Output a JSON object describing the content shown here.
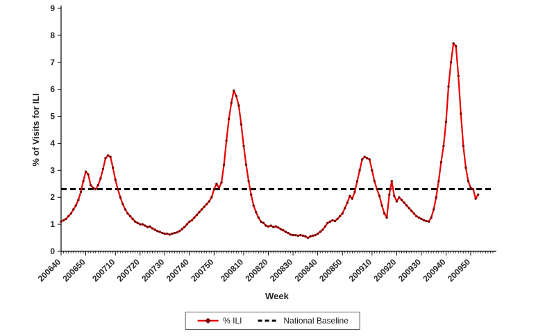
{
  "chart_data": {
    "type": "line",
    "title": "",
    "xlabel": "Week",
    "ylabel": "% of Visits for ILI",
    "ylim": [
      0,
      9
    ],
    "y_ticks": [
      0,
      1,
      2,
      3,
      4,
      5,
      6,
      7,
      8,
      9
    ],
    "grid": false,
    "legend_position": "bottom-center",
    "x_tick_labels": [
      "200640",
      "200650",
      "200710",
      "200720",
      "200730",
      "200740",
      "200750",
      "200810",
      "200820",
      "200830",
      "200840",
      "200850",
      "200910",
      "200920",
      "200930",
      "200940",
      "200950"
    ],
    "week_ranges": [
      [
        2006,
        40,
        52
      ],
      [
        2007,
        1,
        52
      ],
      [
        2008,
        1,
        52
      ],
      [
        2009,
        1,
        53
      ]
    ],
    "baseline": {
      "name": "National Baseline",
      "value": 2.3,
      "color": "#000000",
      "style": "dashed"
    },
    "series": [
      {
        "name": "% ILI",
        "color": "#e60000",
        "marker_color": "#7a0000",
        "values": [
          1.1,
          1.15,
          1.2,
          1.3,
          1.4,
          1.55,
          1.7,
          1.9,
          2.2,
          2.6,
          2.95,
          2.85,
          2.45,
          2.35,
          2.3,
          2.45,
          2.7,
          3.05,
          3.45,
          3.55,
          3.5,
          3.1,
          2.65,
          2.3,
          2.0,
          1.75,
          1.55,
          1.4,
          1.3,
          1.2,
          1.1,
          1.05,
          1.0,
          1.0,
          0.95,
          0.9,
          0.92,
          0.85,
          0.8,
          0.75,
          0.72,
          0.68,
          0.65,
          0.65,
          0.62,
          0.65,
          0.68,
          0.7,
          0.75,
          0.82,
          0.9,
          1.0,
          1.1,
          1.15,
          1.25,
          1.35,
          1.45,
          1.55,
          1.65,
          1.75,
          1.85,
          2.0,
          2.3,
          2.5,
          2.35,
          2.55,
          3.2,
          4.1,
          4.9,
          5.5,
          5.95,
          5.75,
          5.4,
          4.7,
          3.9,
          3.2,
          2.6,
          2.1,
          1.7,
          1.45,
          1.25,
          1.1,
          1.05,
          0.95,
          0.92,
          0.95,
          0.9,
          0.92,
          0.88,
          0.82,
          0.78,
          0.72,
          0.68,
          0.62,
          0.6,
          0.6,
          0.58,
          0.6,
          0.58,
          0.55,
          0.5,
          0.55,
          0.58,
          0.6,
          0.65,
          0.72,
          0.8,
          0.92,
          1.05,
          1.1,
          1.15,
          1.12,
          1.2,
          1.3,
          1.4,
          1.6,
          1.8,
          2.05,
          1.95,
          2.2,
          2.6,
          3.0,
          3.4,
          3.5,
          3.45,
          3.4,
          3.0,
          2.6,
          2.3,
          2.05,
          1.7,
          1.4,
          1.25,
          2.1,
          2.6,
          2.05,
          1.85,
          2.0,
          1.9,
          1.8,
          1.7,
          1.6,
          1.5,
          1.4,
          1.3,
          1.25,
          1.2,
          1.15,
          1.12,
          1.1,
          1.25,
          1.55,
          2.0,
          2.6,
          3.3,
          3.9,
          4.8,
          6.1,
          7.0,
          7.7,
          7.6,
          6.5,
          5.1,
          3.9,
          3.1,
          2.6,
          2.35,
          2.3,
          1.95,
          2.1
        ]
      }
    ]
  },
  "legend": {
    "items": [
      {
        "label": "% ILI"
      },
      {
        "label": "National Baseline"
      }
    ]
  }
}
